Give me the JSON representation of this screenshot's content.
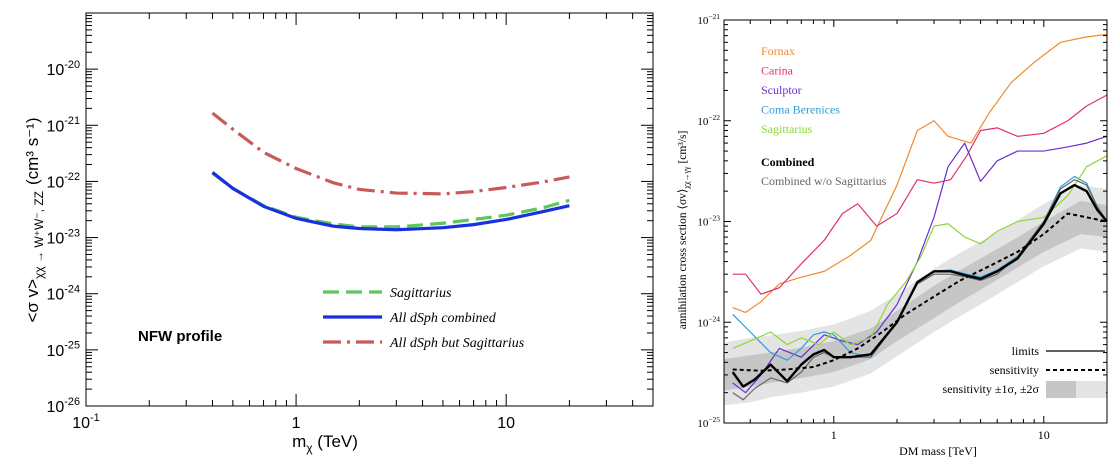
{
  "chart_data": [
    {
      "type": "line",
      "xlabel_main": "m",
      "xlabel_sub": "χ",
      "xlabel_unit": " (TeV)",
      "ylabel": "<σ v>",
      "ylabel_sub": "χχ → W⁺W⁻, ZZ",
      "ylabel_unit": "(cm³ s⁻¹)",
      "xscale": "log",
      "yscale": "log",
      "xlim": [
        0.1,
        50
      ],
      "ylim": [
        1e-26,
        1e-19
      ],
      "x_tick_labels": [
        {
          "x": 0.1,
          "base": "10",
          "exp": "-1"
        },
        {
          "x": 1,
          "base": "1",
          "exp": ""
        },
        {
          "x": 10,
          "base": "10",
          "exp": ""
        }
      ],
      "y_tick_labels": [
        {
          "y": 1e-20,
          "base": "10",
          "exp": "-20"
        },
        {
          "y": 1e-21,
          "base": "10",
          "exp": "-21"
        },
        {
          "y": 1e-22,
          "base": "10",
          "exp": "-22"
        },
        {
          "y": 1e-23,
          "base": "10",
          "exp": "-23"
        },
        {
          "y": 1e-24,
          "base": "10",
          "exp": "-24"
        },
        {
          "y": 1e-25,
          "base": "10",
          "exp": "-25"
        },
        {
          "y": 1e-26,
          "base": "10",
          "exp": "-26"
        }
      ],
      "annotation": "NFW profile",
      "legend_position": "bottom-right",
      "series": [
        {
          "name": "Sagittarius",
          "color": "#5cc85c",
          "style": "dash",
          "x": [
            0.4,
            0.5,
            0.7,
            1.0,
            1.5,
            2.0,
            3.0,
            5.0,
            7.0,
            10,
            15,
            20
          ],
          "y": [
            1.4e-22,
            7.5e-23,
            3.7e-23,
            2.3e-23,
            1.75e-23,
            1.55e-23,
            1.55e-23,
            1.8e-23,
            2.1e-23,
            2.5e-23,
            3.4e-23,
            4.6e-23
          ]
        },
        {
          "name": "All dSph combined",
          "color": "#1a2fe0",
          "style": "solid",
          "x": [
            0.4,
            0.5,
            0.7,
            1.0,
            1.5,
            2.0,
            3.0,
            5.0,
            7.0,
            10,
            15,
            20
          ],
          "y": [
            1.45e-22,
            7.5e-23,
            3.6e-23,
            2.2e-23,
            1.6e-23,
            1.45e-23,
            1.38e-23,
            1.5e-23,
            1.7e-23,
            2.1e-23,
            2.9e-23,
            3.7e-23
          ]
        },
        {
          "name": "All dSph but Sagittarius",
          "color": "#c85a5a",
          "style": "dashdot",
          "x": [
            0.4,
            0.5,
            0.7,
            1.0,
            1.5,
            2.0,
            3.0,
            5.0,
            7.0,
            10,
            15,
            20
          ],
          "y": [
            1.65e-21,
            8.5e-22,
            3.3e-22,
            1.7e-22,
            9.5e-23,
            7.2e-23,
            6.2e-23,
            6e-23,
            6.6e-23,
            7.8e-23,
            9.8e-23,
            1.2e-22
          ]
        }
      ]
    },
    {
      "type": "line",
      "xlabel": "DM mass [TeV]",
      "ylabel": "annihilation cross section ⟨σv⟩",
      "ylabel_sub": "χχ→γγ",
      "ylabel_unit": " [cm³/s]",
      "xscale": "log",
      "yscale": "log",
      "xlim": [
        0.3,
        20
      ],
      "ylim": [
        1e-25,
        1e-21
      ],
      "x_tick_labels": [
        {
          "x": 1,
          "label": "1"
        },
        {
          "x": 10,
          "label": "10"
        }
      ],
      "y_tick_labels": [
        {
          "y": 1e-21,
          "base": "10",
          "exp": "−21"
        },
        {
          "y": 1e-22,
          "base": "10",
          "exp": "−22"
        },
        {
          "y": 1e-23,
          "base": "10",
          "exp": "−23"
        },
        {
          "y": 1e-24,
          "base": "10",
          "exp": "−24"
        },
        {
          "y": 1e-25,
          "base": "10",
          "exp": "−25"
        }
      ],
      "legend_position": "top-left",
      "legend2": {
        "limits": "limits",
        "sensitivity": "sensitivity",
        "bands": "sensitivity ±1σ, ±2σ"
      },
      "band_colors": {
        "one_sigma": "#c6c6c6",
        "two_sigma": "#e4e4e4"
      },
      "bands": {
        "x": [
          0.3,
          0.4,
          0.5,
          0.7,
          1.0,
          1.5,
          2.0,
          3.0,
          4.0,
          5.0,
          7.0,
          10,
          15,
          20
        ],
        "median": [
          3e-25,
          3.3e-25,
          3.5e-25,
          3.9e-25,
          4.5e-25,
          6e-25,
          9e-25,
          1.6e-24,
          2.3e-24,
          3e-24,
          4.5e-24,
          7e-24,
          1.1e-23,
          1e-23
        ],
        "lo1": [
          2.1e-25,
          2.3e-25,
          2.5e-25,
          2.8e-25,
          3.2e-25,
          4.3e-25,
          6.5e-25,
          1.1e-24,
          1.6e-24,
          2.1e-24,
          3.2e-24,
          5e-24,
          7.5e-24,
          7e-24
        ],
        "hi1": [
          4.3e-25,
          4.7e-25,
          5e-25,
          5.6e-25,
          6.5e-25,
          8.7e-25,
          1.3e-24,
          2.3e-24,
          3.3e-24,
          4.3e-24,
          6.4e-24,
          1e-23,
          1.6e-23,
          1.45e-23
        ],
        "lo2": [
          1.5e-25,
          1.6e-25,
          1.8e-25,
          2e-25,
          2.3e-25,
          3.1e-25,
          4.6e-25,
          8e-25,
          1.15e-24,
          1.5e-24,
          2.3e-24,
          3.6e-24,
          5.4e-24,
          5e-24
        ],
        "hi2": [
          6.3e-25,
          7e-25,
          7.4e-25,
          8.2e-25,
          9.5e-25,
          1.3e-24,
          1.9e-24,
          3.4e-24,
          4.9e-24,
          6.3e-24,
          9.4e-24,
          1.5e-23,
          2.3e-23,
          2.1e-23
        ]
      },
      "series": [
        {
          "name": "Fornax",
          "color": "#f28a2e",
          "width": 1.2,
          "x": [
            0.33,
            0.38,
            0.45,
            0.55,
            0.7,
            0.9,
            1.2,
            1.5,
            2.0,
            2.5,
            3.0,
            3.5,
            4.5,
            5.5,
            7.0,
            9.0,
            12,
            16,
            20
          ],
          "y": [
            1.4e-24,
            1.25e-24,
            1.6e-24,
            2.4e-24,
            2.8e-24,
            3.2e-24,
            4.6e-24,
            6.5e-24,
            2.3e-23,
            8e-23,
            1e-22,
            7e-23,
            6e-23,
            1.2e-22,
            2.4e-22,
            3.8e-22,
            6e-22,
            6.8e-22,
            7.2e-22
          ]
        },
        {
          "name": "Carina",
          "color": "#e0316a",
          "width": 1.2,
          "x": [
            0.33,
            0.38,
            0.45,
            0.55,
            0.7,
            0.9,
            1.1,
            1.3,
            1.6,
            2.0,
            2.5,
            3.0,
            3.6,
            4.3,
            5.0,
            6.0,
            7.5,
            10,
            13,
            16,
            20
          ],
          "y": [
            3e-24,
            3e-24,
            1.9e-24,
            2.2e-24,
            3.8e-24,
            6.5e-24,
            1.2e-23,
            1.5e-23,
            9e-24,
            1.2e-23,
            2.6e-23,
            2.4e-23,
            2.6e-23,
            4.5e-23,
            8e-23,
            8.5e-23,
            7e-23,
            7.5e-23,
            1e-22,
            1.4e-22,
            1.8e-22
          ]
        },
        {
          "name": "Sculptor",
          "color": "#6a2fd0",
          "width": 1.2,
          "x": [
            0.33,
            0.38,
            0.45,
            0.55,
            0.7,
            0.9,
            1.1,
            1.3,
            1.6,
            2.0,
            2.5,
            3.0,
            3.5,
            4.2,
            5.0,
            6.0,
            7.5,
            10,
            13,
            16,
            20
          ],
          "y": [
            2.5e-25,
            2e-25,
            3e-25,
            5.5e-25,
            4.5e-25,
            7.5e-25,
            6.5e-25,
            6e-25,
            8e-25,
            1.5e-24,
            4e-24,
            1.1e-23,
            3.5e-23,
            6e-23,
            2.5e-23,
            4e-23,
            5e-23,
            5e-23,
            5.5e-23,
            6e-23,
            7e-23
          ]
        },
        {
          "name": "Coma Berenices",
          "color": "#2f9cd8",
          "width": 1.2,
          "x": [
            0.33,
            0.4,
            0.5,
            0.6,
            0.7,
            0.8,
            0.9,
            1.0,
            1.2,
            1.5,
            2.0,
            2.5,
            3.0,
            3.6,
            4.3,
            5.0,
            6.0,
            7.5,
            10,
            12,
            14,
            16,
            18,
            20
          ],
          "y": [
            1.2e-24,
            8e-25,
            5e-25,
            4.2e-25,
            5.5e-25,
            7.5e-25,
            8e-25,
            7.5e-25,
            5e-25,
            4.5e-25,
            1e-24,
            2.5e-24,
            3.2e-24,
            3.3e-24,
            3e-24,
            2.8e-24,
            3.3e-24,
            4.5e-24,
            1e-23,
            2.2e-23,
            2.8e-23,
            2.4e-23,
            1.4e-23,
            1e-23
          ]
        },
        {
          "name": "Sagittarius",
          "color": "#8ed63a",
          "width": 1.2,
          "x": [
            0.33,
            0.4,
            0.5,
            0.6,
            0.7,
            0.85,
            1.0,
            1.2,
            1.5,
            1.8,
            2.2,
            2.6,
            3.0,
            3.5,
            4.2,
            5.0,
            6.0,
            7.5,
            10,
            13,
            16,
            20
          ],
          "y": [
            5.5e-25,
            6.5e-25,
            8e-25,
            6e-25,
            7e-25,
            6e-25,
            8e-25,
            6e-25,
            7e-25,
            1.5e-24,
            2.5e-24,
            4.5e-24,
            9e-24,
            9.5e-24,
            7e-24,
            6e-24,
            8e-24,
            1e-23,
            1.1e-23,
            1.8e-23,
            3.5e-23,
            4.5e-23
          ]
        },
        {
          "name": "Combined w/o Sagittarius",
          "color": "#666666",
          "width": 1.2,
          "x": [
            0.33,
            0.37,
            0.42,
            0.5,
            0.6,
            0.7,
            0.8,
            0.9,
            1.0,
            1.2,
            1.5,
            2.0,
            2.5,
            3.0,
            3.6,
            4.3,
            5.0,
            6.0,
            7.5,
            10,
            12,
            14,
            16,
            18,
            20
          ],
          "y": [
            2e-25,
            1.7e-25,
            2.2e-25,
            2.8e-25,
            2.5e-25,
            3.2e-25,
            4.5e-25,
            5e-25,
            4.5e-25,
            4.5e-25,
            4.5e-25,
            1e-24,
            2.4e-24,
            3e-24,
            3e-24,
            2.8e-24,
            2.6e-24,
            3e-24,
            4.5e-24,
            1e-23,
            2.1e-23,
            2.6e-23,
            2.3e-23,
            1.4e-23,
            1e-23
          ]
        },
        {
          "name": "Combined",
          "color": "#000000",
          "width": 2.4,
          "x": [
            0.33,
            0.37,
            0.42,
            0.5,
            0.6,
            0.7,
            0.8,
            0.9,
            1.0,
            1.2,
            1.5,
            2.0,
            2.5,
            3.0,
            3.6,
            4.3,
            5.0,
            6.0,
            7.5,
            10,
            12,
            14,
            16,
            18,
            20
          ],
          "y": [
            3.2e-25,
            2.3e-25,
            2.7e-25,
            3.8e-25,
            2.6e-25,
            3.8e-25,
            4.8e-25,
            5.3e-25,
            4.5e-25,
            4.5e-25,
            4.8e-25,
            1e-24,
            2.5e-24,
            3.2e-24,
            3.2e-24,
            2.9e-24,
            2.7e-24,
            3.2e-24,
            4.3e-24,
            9.5e-24,
            1.9e-23,
            2.3e-23,
            2e-23,
            1.3e-23,
            1e-23
          ]
        }
      ],
      "sensitivity_line": {
        "x": [
          0.33,
          0.45,
          0.6,
          0.8,
          1.0,
          1.3,
          1.7,
          2.2,
          3.0,
          4.0,
          5.5,
          7.5,
          10,
          13,
          16,
          20
        ],
        "y": [
          3.4e-25,
          3.3e-25,
          3.4e-25,
          3.6e-25,
          4.2e-25,
          5.5e-25,
          8e-25,
          1.2e-24,
          1.8e-24,
          2.6e-24,
          3.6e-24,
          5e-24,
          7.5e-24,
          1.2e-23,
          1.1e-23,
          1e-23
        ]
      }
    }
  ]
}
